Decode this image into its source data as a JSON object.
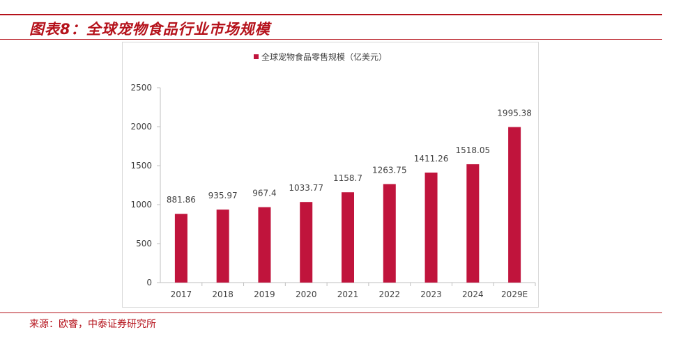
{
  "figure": {
    "title": "图表8：全球宠物食品行业市场规模",
    "source": "来源：欧睿，中泰证券研究所"
  },
  "colors": {
    "accent": "#b5121b",
    "bar": "#c0143c"
  },
  "chart_data": {
    "type": "bar",
    "categories": [
      "2017",
      "2018",
      "2019",
      "2020",
      "2021",
      "2022",
      "2023",
      "2024",
      "2029E"
    ],
    "series": [
      {
        "name": "全球宠物食品零售规模（亿美元）",
        "values": [
          881.86,
          935.97,
          967.4,
          1033.77,
          1158.7,
          1263.75,
          1411.26,
          1518.05,
          1995.38
        ],
        "labels": [
          "881.86",
          "935.97",
          "967.4",
          "1033.77",
          "1158.7",
          "1263.75",
          "1411.26",
          "1518.05",
          "1995.38"
        ]
      }
    ],
    "ylim": [
      0,
      2500
    ],
    "yticks": [
      "0",
      "500",
      "1000",
      "1500",
      "2000",
      "2500"
    ],
    "grid": false,
    "legend": "top-center"
  }
}
